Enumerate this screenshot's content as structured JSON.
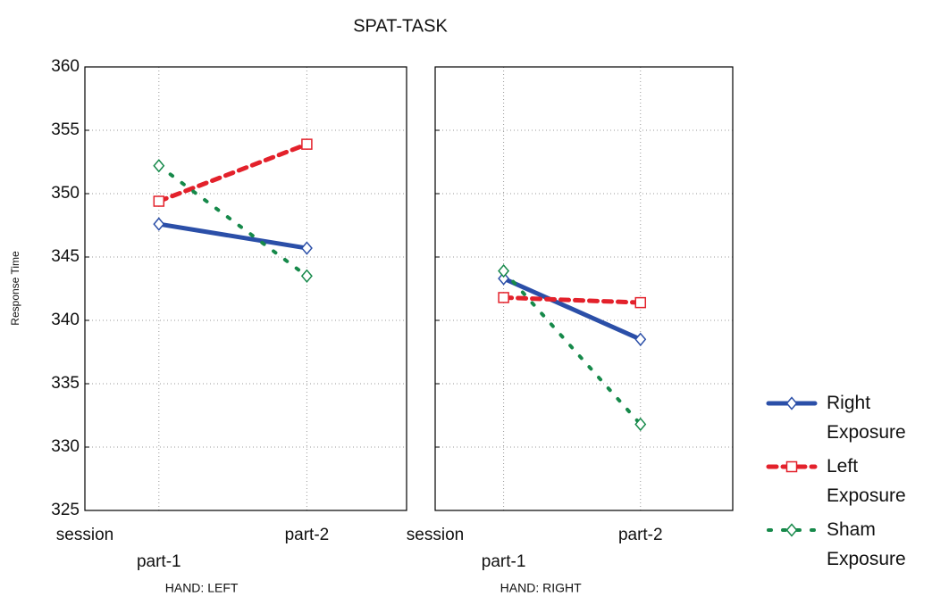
{
  "title": "SPAT-TASK",
  "y_label": "Response Time",
  "chart_data": [
    {
      "type": "line",
      "x_label": "session",
      "panel_label": "HAND: LEFT",
      "categories": [
        "part-1",
        "part-2"
      ],
      "ylim": [
        325,
        360
      ],
      "yticks": [
        325,
        330,
        335,
        340,
        345,
        350,
        355,
        360
      ],
      "grid": true,
      "series": [
        {
          "name": "Right Exposure",
          "color": "#2b4fa8",
          "line_style": "solid",
          "marker": "diamond",
          "values": [
            347.6,
            345.7
          ]
        },
        {
          "name": "Left Exposure",
          "color": "#e3212b",
          "line_style": "dashed",
          "marker": "square",
          "values": [
            349.4,
            353.9
          ]
        },
        {
          "name": "Sham Exposure",
          "color": "#16894a",
          "line_style": "dotted",
          "marker": "diamond",
          "values": [
            352.2,
            343.5
          ]
        }
      ]
    },
    {
      "type": "line",
      "x_label": "session",
      "panel_label": "HAND: RIGHT",
      "categories": [
        "part-1",
        "part-2"
      ],
      "ylim": [
        325,
        360
      ],
      "yticks": [
        325,
        330,
        335,
        340,
        345,
        350,
        355,
        360
      ],
      "grid": true,
      "series": [
        {
          "color": "#2b4fa8",
          "line_style": "solid",
          "marker": "diamond",
          "values": [
            343.3,
            338.5
          ]
        },
        {
          "color": "#e3212b",
          "line_style": "dashed",
          "marker": "square",
          "values": [
            341.8,
            341.4
          ]
        },
        {
          "color": "#16894a",
          "line_style": "dotted",
          "marker": "diamond",
          "values": [
            343.9,
            331.8
          ]
        }
      ]
    }
  ]
}
